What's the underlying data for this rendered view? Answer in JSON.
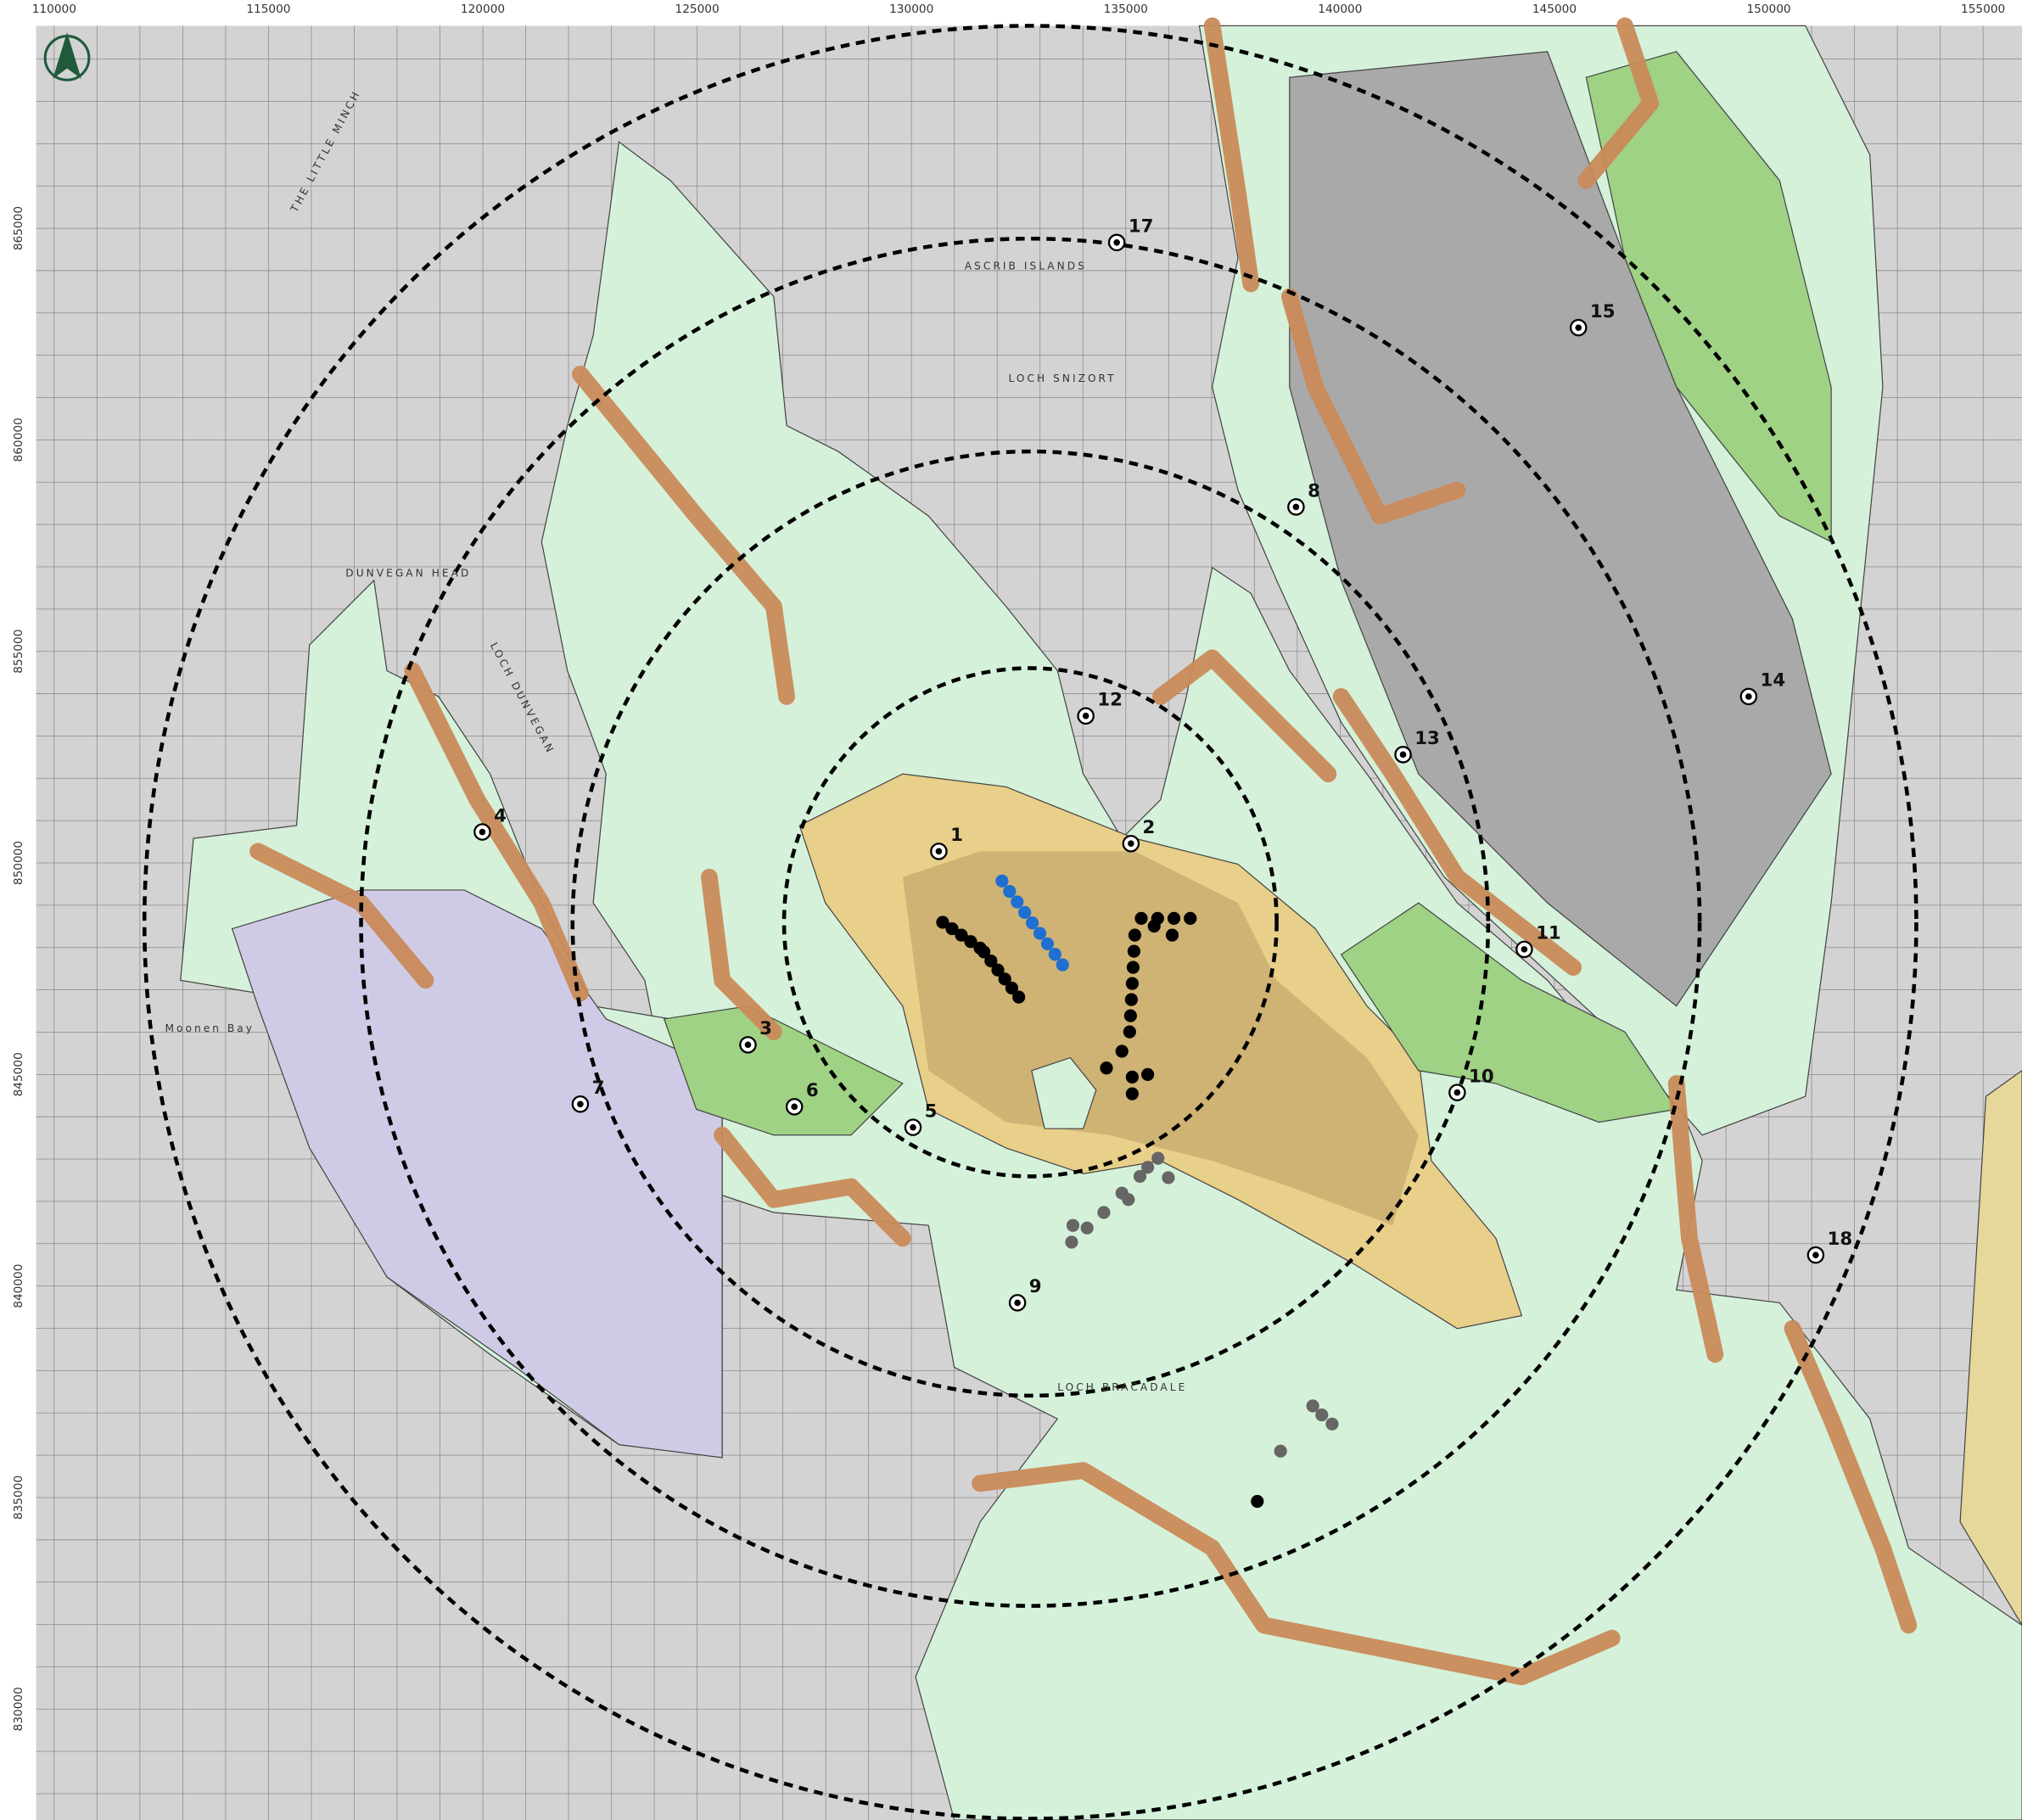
{
  "map": {
    "eastings": [
      110000,
      115000,
      120000,
      125000,
      130000,
      135000,
      140000,
      145000,
      150000,
      155000
    ],
    "northings": [
      865000,
      860000,
      855000,
      850000,
      845000,
      840000,
      835000,
      830000
    ],
    "viewpoints": [
      "1",
      "2",
      "3",
      "4",
      "5",
      "6",
      "7",
      "8",
      "9",
      "10",
      "11",
      "12",
      "13",
      "14",
      "15",
      "17",
      "18"
    ],
    "place_names": [
      "THE LITTLE MINCH",
      "LOCH SNIZORT",
      "ASCRIB ISLANDS",
      "DUNVEGAN HEAD",
      "LOCH DUNVEGAN",
      "LOCH BRACADALE",
      "Moonen Bay"
    ]
  }
}
